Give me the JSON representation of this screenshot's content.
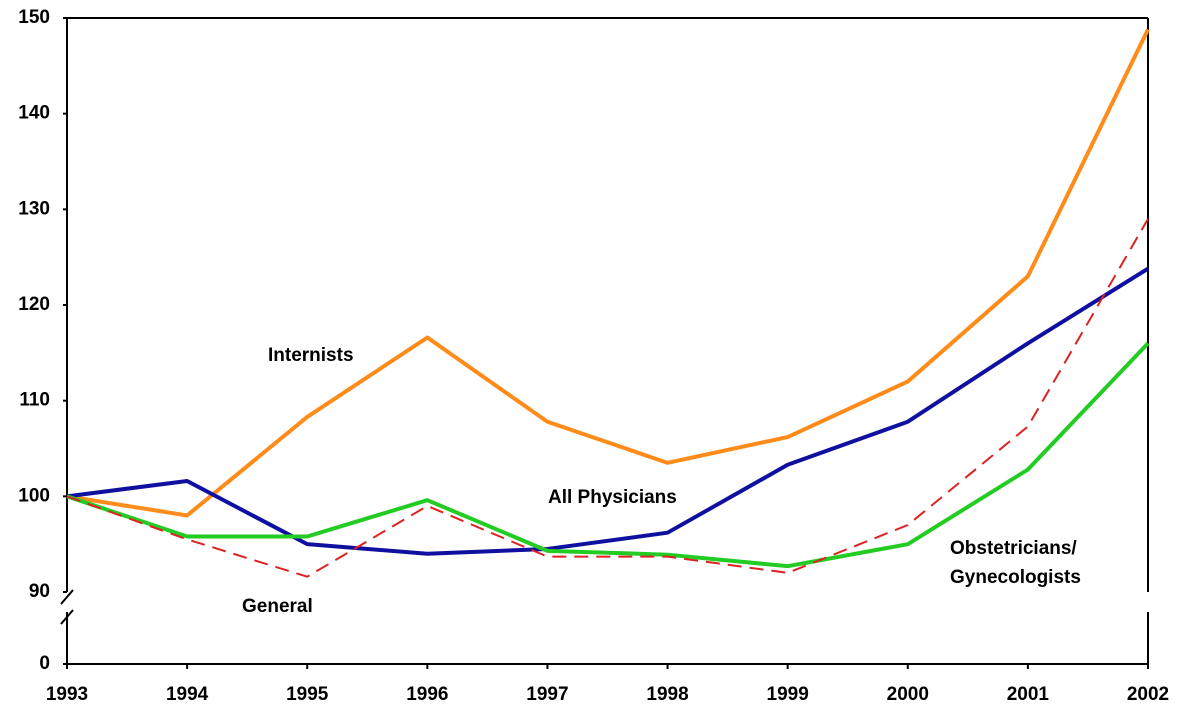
{
  "chart_data": {
    "type": "line",
    "x": [
      1993,
      1994,
      1995,
      1996,
      1997,
      1998,
      1999,
      2000,
      2001,
      2002
    ],
    "xlim": [
      1993,
      2002
    ],
    "ylim": [
      0,
      150
    ],
    "axis_break": [
      0,
      90
    ],
    "yticks": [
      0,
      90,
      100,
      110,
      120,
      130,
      140,
      150
    ],
    "series": [
      {
        "name": "Internists",
        "color": "#ff8c1a",
        "values": [
          100,
          98,
          108.3,
          116.6,
          107.8,
          103.5,
          106.2,
          112,
          123,
          148.8
        ]
      },
      {
        "name": "All Physicians",
        "color": "#1010a0",
        "values": [
          100,
          101.6,
          95,
          94,
          94.5,
          96.2,
          103.3,
          107.8,
          116,
          123.8
        ]
      },
      {
        "name": "Obstetricians/ Gynecologists",
        "color": "#22cc22",
        "values": [
          100,
          95.8,
          95.8,
          99.6,
          94.3,
          93.9,
          92.7,
          95,
          102.8,
          116
        ]
      },
      {
        "name": "General",
        "color": "#dd2222",
        "dashed": true,
        "values": [
          100,
          95.5,
          91.6,
          99,
          93.7,
          93.7,
          92,
          97,
          107.3,
          129
        ]
      }
    ]
  }
}
